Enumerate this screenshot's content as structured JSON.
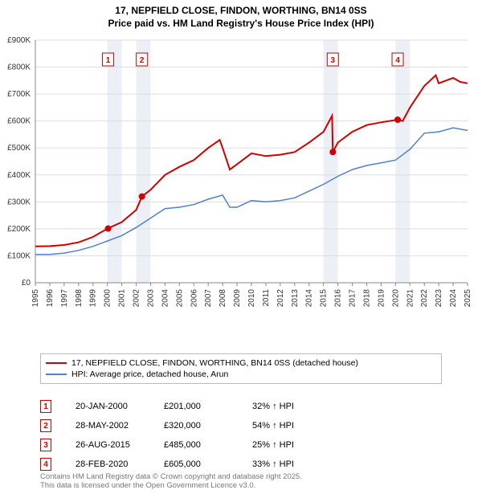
{
  "title_line1": "17, NEPFIELD CLOSE, FINDON, WORTHING, BN14 0SS",
  "title_line2": "Price paid vs. HM Land Registry's House Price Index (HPI)",
  "chart": {
    "type": "line",
    "background_color": "#ffffff",
    "grid_color": "#dddddd",
    "axis_color": "#888888",
    "shaded_band_color": "rgba(200,210,230,0.35)",
    "shaded_years": [
      2000,
      2002,
      2015,
      2020
    ],
    "x_axis": {
      "min": 1995,
      "max": 2025,
      "ticks": [
        "1995",
        "1996",
        "1997",
        "1998",
        "1999",
        "2000",
        "2001",
        "2002",
        "2003",
        "2004",
        "2005",
        "2006",
        "2007",
        "2008",
        "2009",
        "2010",
        "2011",
        "2012",
        "2013",
        "2014",
        "2015",
        "2016",
        "2017",
        "2018",
        "2019",
        "2020",
        "2021",
        "2022",
        "2023",
        "2024",
        "2025"
      ],
      "label_fontsize": 10,
      "label_rotation": -90
    },
    "y_axis": {
      "min": 0,
      "max": 900000,
      "tick_step": 100000,
      "ticks": [
        "£0",
        "£100K",
        "£200K",
        "£300K",
        "£400K",
        "£500K",
        "£600K",
        "£700K",
        "£800K",
        "£900K"
      ],
      "label_fontsize": 10
    },
    "series": [
      {
        "name": "17, NEPFIELD CLOSE, FINDON, WORTHING, BN14 0SS (detached house)",
        "color": "#d00000",
        "line_width": 2,
        "data": [
          [
            1995,
            135000
          ],
          [
            1996,
            136000
          ],
          [
            1997,
            140000
          ],
          [
            1998,
            150000
          ],
          [
            1999,
            170000
          ],
          [
            2000,
            201000
          ],
          [
            2001,
            225000
          ],
          [
            2002,
            270000
          ],
          [
            2002.4,
            320000
          ],
          [
            2003,
            345000
          ],
          [
            2004,
            400000
          ],
          [
            2005,
            430000
          ],
          [
            2006,
            455000
          ],
          [
            2007,
            500000
          ],
          [
            2007.8,
            530000
          ],
          [
            2008,
            500000
          ],
          [
            2008.5,
            420000
          ],
          [
            2009,
            440000
          ],
          [
            2010,
            480000
          ],
          [
            2011,
            470000
          ],
          [
            2012,
            475000
          ],
          [
            2013,
            485000
          ],
          [
            2014,
            520000
          ],
          [
            2015,
            560000
          ],
          [
            2015.6,
            620000
          ],
          [
            2015.65,
            485000
          ],
          [
            2016,
            520000
          ],
          [
            2017,
            560000
          ],
          [
            2018,
            585000
          ],
          [
            2019,
            595000
          ],
          [
            2020.15,
            605000
          ],
          [
            2020.5,
            600000
          ],
          [
            2021,
            650000
          ],
          [
            2022,
            730000
          ],
          [
            2022.8,
            770000
          ],
          [
            2023,
            740000
          ],
          [
            2024,
            760000
          ],
          [
            2024.5,
            745000
          ],
          [
            2025,
            740000
          ]
        ]
      },
      {
        "name": "HPI: Average price, detached house, Arun",
        "color": "#5080d0",
        "line_width": 1.5,
        "data": [
          [
            1995,
            105000
          ],
          [
            1996,
            105000
          ],
          [
            1997,
            110000
          ],
          [
            1998,
            120000
          ],
          [
            1999,
            135000
          ],
          [
            2000,
            155000
          ],
          [
            2001,
            175000
          ],
          [
            2002,
            205000
          ],
          [
            2003,
            240000
          ],
          [
            2004,
            275000
          ],
          [
            2005,
            280000
          ],
          [
            2006,
            290000
          ],
          [
            2007,
            310000
          ],
          [
            2008,
            325000
          ],
          [
            2008.5,
            280000
          ],
          [
            2009,
            280000
          ],
          [
            2010,
            305000
          ],
          [
            2011,
            300000
          ],
          [
            2012,
            305000
          ],
          [
            2013,
            315000
          ],
          [
            2014,
            340000
          ],
          [
            2015,
            365000
          ],
          [
            2016,
            395000
          ],
          [
            2017,
            420000
          ],
          [
            2018,
            435000
          ],
          [
            2019,
            445000
          ],
          [
            2020,
            455000
          ],
          [
            2021,
            495000
          ],
          [
            2022,
            555000
          ],
          [
            2023,
            560000
          ],
          [
            2024,
            575000
          ],
          [
            2025,
            565000
          ]
        ]
      }
    ],
    "markers": [
      {
        "idx": "1",
        "year": 2000.05,
        "value": 201000,
        "color": "#d00000"
      },
      {
        "idx": "2",
        "year": 2002.4,
        "value": 320000,
        "color": "#d00000"
      },
      {
        "idx": "3",
        "year": 2015.65,
        "value": 485000,
        "color": "#d00000"
      },
      {
        "idx": "4",
        "year": 2020.15,
        "value": 605000,
        "color": "#d00000"
      }
    ]
  },
  "legend": {
    "rows": [
      {
        "color": "#d00000",
        "label": "17, NEPFIELD CLOSE, FINDON, WORTHING, BN14 0SS (detached house)"
      },
      {
        "color": "#5080d0",
        "label": "HPI: Average price, detached house, Arun"
      }
    ]
  },
  "sales": {
    "rows": [
      {
        "idx": "1",
        "date": "20-JAN-2000",
        "price": "£201,000",
        "pct": "32% ↑ HPI",
        "color": "#d00000"
      },
      {
        "idx": "2",
        "date": "28-MAY-2002",
        "price": "£320,000",
        "pct": "54% ↑ HPI",
        "color": "#d00000"
      },
      {
        "idx": "3",
        "date": "26-AUG-2015",
        "price": "£485,000",
        "pct": "25% ↑ HPI",
        "color": "#d00000"
      },
      {
        "idx": "4",
        "date": "28-FEB-2020",
        "price": "£605,000",
        "pct": "33% ↑ HPI",
        "color": "#d00000"
      }
    ]
  },
  "footer_line1": "Contains HM Land Registry data © Crown copyright and database right 2025.",
  "footer_line2": "This data is licensed under the Open Government Licence v3.0."
}
